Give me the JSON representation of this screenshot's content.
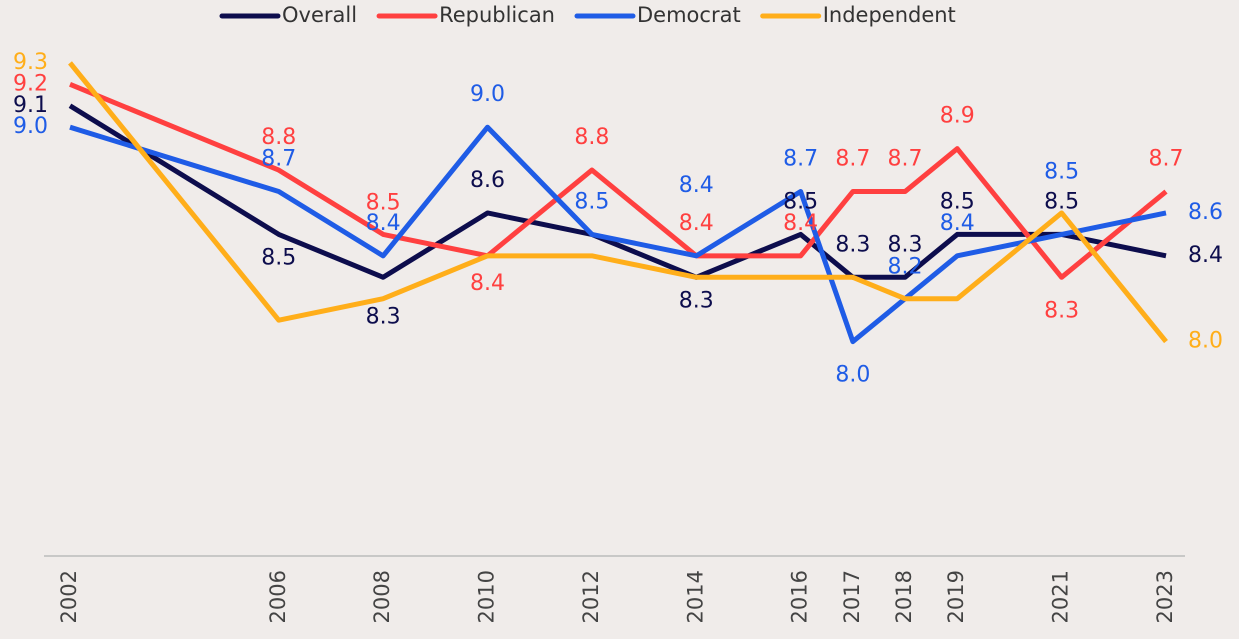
{
  "chart_data": {
    "type": "line",
    "x": [
      2002,
      2006,
      2008,
      2010,
      2012,
      2014,
      2016,
      2017,
      2018,
      2019,
      2021,
      2023
    ],
    "xlim": [
      2002,
      2023
    ],
    "xticks": [
      2002,
      2006,
      2008,
      2010,
      2012,
      2014,
      2016,
      2017,
      2018,
      2019,
      2021,
      2023
    ],
    "ylim": [
      7.0,
      9.5
    ],
    "series": [
      {
        "name": "Overall",
        "color": "#0d0d4d",
        "values": [
          9.1,
          8.5,
          8.3,
          8.6,
          8.5,
          8.3,
          8.5,
          8.3,
          8.3,
          8.5,
          8.5,
          8.4
        ],
        "value_labels": [
          "9.1",
          "8.5",
          "8.3",
          "8.6",
          null,
          "8.3",
          "8.5",
          "8.3",
          "8.3",
          "8.5",
          "8.5",
          "8.4"
        ]
      },
      {
        "name": "Republican",
        "color": "#ff4040",
        "values": [
          9.2,
          8.8,
          8.5,
          8.4,
          8.8,
          8.4,
          8.4,
          8.7,
          8.7,
          8.9,
          8.3,
          8.7
        ],
        "value_labels": [
          "9.2",
          "8.8",
          "8.5",
          "8.4",
          "8.8",
          "8.4",
          "8.4",
          "8.7",
          "8.7",
          "8.9",
          "8.3",
          "8.7"
        ]
      },
      {
        "name": "Democrat",
        "color": "#1f5ce6",
        "values": [
          9.0,
          8.7,
          8.4,
          9.0,
          8.5,
          8.4,
          8.7,
          8.0,
          8.2,
          8.4,
          8.5,
          8.6
        ],
        "value_labels": [
          "9.0",
          "8.7",
          "8.4",
          "9.0",
          "8.5",
          "8.4",
          "8.7",
          "8.0",
          "8.2",
          "8.4",
          "8.5",
          "8.6"
        ]
      },
      {
        "name": "Independent",
        "color": "#ffae1a",
        "values": [
          9.3,
          8.1,
          8.2,
          8.4,
          8.4,
          8.3,
          8.3,
          8.3,
          8.2,
          8.2,
          8.6,
          8.0
        ],
        "value_labels": [
          "9.3",
          null,
          null,
          null,
          null,
          null,
          null,
          null,
          null,
          null,
          null,
          "8.0"
        ]
      }
    ]
  }
}
